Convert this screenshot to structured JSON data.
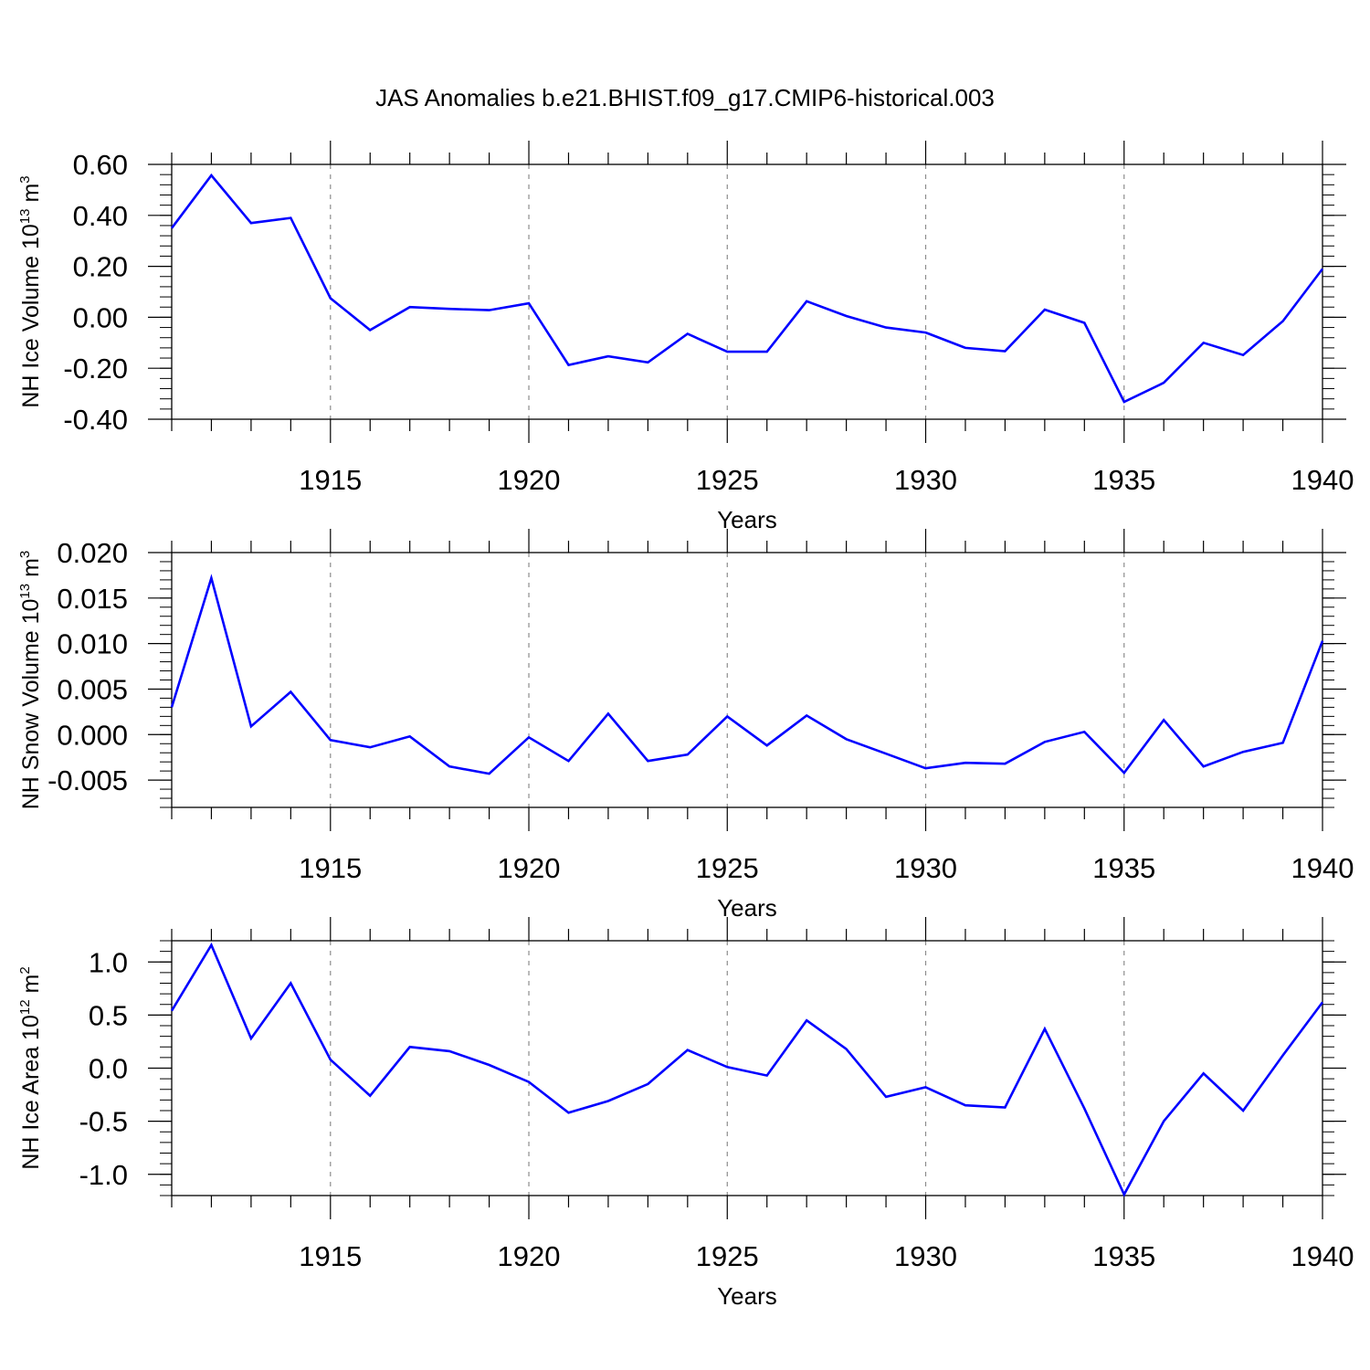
{
  "figure_title": "JAS Anomalies b.e21.BHIST.f09_g17.CMIP6-historical.003",
  "colors": {
    "series": "#0000ff",
    "axes": "#000000",
    "grid": "#8c8c8c"
  },
  "chart_data": [
    {
      "type": "line",
      "ylabel": {
        "base": "NH Ice Volume 10",
        "exp": "13",
        "unit": " m",
        "unit_exp": "3"
      },
      "xlabel": "Years",
      "xlim": [
        1911,
        1940
      ],
      "ylim": [
        -0.4,
        0.6
      ],
      "yticks": [
        -0.4,
        -0.2,
        0.0,
        0.2,
        0.4,
        0.6
      ],
      "ytick_labels": [
        "-0.40",
        "-0.20",
        "0.00",
        "0.20",
        "0.40",
        "0.60"
      ],
      "xticks": [
        1915,
        1920,
        1925,
        1930,
        1935,
        1940
      ],
      "xtick_labels": [
        "1915",
        "1920",
        "1925",
        "1930",
        "1935",
        "1940"
      ],
      "grid": "vertical dashed at major x ticks",
      "x": [
        1911,
        1912,
        1913,
        1914,
        1915,
        1916,
        1917,
        1918,
        1919,
        1920,
        1921,
        1922,
        1923,
        1924,
        1925,
        1926,
        1927,
        1928,
        1929,
        1930,
        1931,
        1932,
        1933,
        1934,
        1935,
        1936,
        1937,
        1938,
        1939,
        1940
      ],
      "y": [
        0.35,
        0.557,
        0.37,
        0.39,
        0.075,
        -0.05,
        0.04,
        0.033,
        0.028,
        0.055,
        -0.187,
        -0.153,
        -0.177,
        -0.065,
        -0.135,
        -0.135,
        0.063,
        0.005,
        -0.04,
        -0.06,
        -0.12,
        -0.133,
        0.03,
        -0.022,
        -0.332,
        -0.257,
        -0.1,
        -0.148,
        -0.015,
        0.19
      ]
    },
    {
      "type": "line",
      "ylabel": {
        "base": "NH Snow Volume 10",
        "exp": "13",
        "unit": " m",
        "unit_exp": "3"
      },
      "xlabel": "Years",
      "xlim": [
        1911,
        1940
      ],
      "ylim": [
        -0.008,
        0.02
      ],
      "yticks": [
        -0.005,
        0.0,
        0.005,
        0.01,
        0.015,
        0.02
      ],
      "ytick_labels": [
        "-0.005",
        "0.000",
        "0.005",
        "0.010",
        "0.015",
        "0.020"
      ],
      "xticks": [
        1915,
        1920,
        1925,
        1930,
        1935,
        1940
      ],
      "xtick_labels": [
        "1915",
        "1920",
        "1925",
        "1930",
        "1935",
        "1940"
      ],
      "grid": "vertical dashed at major x ticks",
      "x": [
        1911,
        1912,
        1913,
        1914,
        1915,
        1916,
        1917,
        1918,
        1919,
        1920,
        1921,
        1922,
        1923,
        1924,
        1925,
        1926,
        1927,
        1928,
        1929,
        1930,
        1931,
        1932,
        1933,
        1934,
        1935,
        1936,
        1937,
        1938,
        1939,
        1940
      ],
      "y": [
        0.003,
        0.0172,
        0.0009,
        0.0047,
        -0.0006,
        -0.0014,
        -0.0002,
        -0.0035,
        -0.0043,
        -0.0003,
        -0.0029,
        0.0023,
        -0.0029,
        -0.0022,
        0.002,
        -0.0012,
        0.0021,
        -0.0005,
        -0.0021,
        -0.0037,
        -0.0031,
        -0.0032,
        -0.0008,
        0.0003,
        -0.0042,
        0.0016,
        -0.0035,
        -0.0019,
        -0.0009,
        0.0103
      ]
    },
    {
      "type": "line",
      "ylabel": {
        "base": "NH Ice Area 10",
        "exp": "12",
        "unit": " m",
        "unit_exp": "2"
      },
      "xlabel": "Years",
      "xlim": [
        1911,
        1940
      ],
      "ylim": [
        -1.2,
        1.2
      ],
      "yticks": [
        -1.0,
        -0.5,
        0.0,
        0.5,
        1.0
      ],
      "ytick_labels": [
        "-1.0",
        "-0.5",
        "0.0",
        "0.5",
        "1.0"
      ],
      "xticks": [
        1915,
        1920,
        1925,
        1930,
        1935,
        1940
      ],
      "xtick_labels": [
        "1915",
        "1920",
        "1925",
        "1930",
        "1935",
        "1940"
      ],
      "grid": "vertical dashed at major x ticks",
      "x": [
        1911,
        1912,
        1913,
        1914,
        1915,
        1916,
        1917,
        1918,
        1919,
        1920,
        1921,
        1922,
        1923,
        1924,
        1925,
        1926,
        1927,
        1928,
        1929,
        1930,
        1931,
        1932,
        1933,
        1934,
        1935,
        1936,
        1937,
        1938,
        1939,
        1940
      ],
      "y": [
        0.54,
        1.16,
        0.28,
        0.8,
        0.08,
        -0.26,
        0.2,
        0.16,
        0.03,
        -0.13,
        -0.42,
        -0.31,
        -0.15,
        0.17,
        0.01,
        -0.07,
        0.45,
        0.18,
        -0.27,
        -0.18,
        -0.35,
        -0.37,
        0.37,
        -0.38,
        -1.19,
        -0.5,
        -0.05,
        -0.4,
        0.12,
        0.62
      ]
    }
  ]
}
